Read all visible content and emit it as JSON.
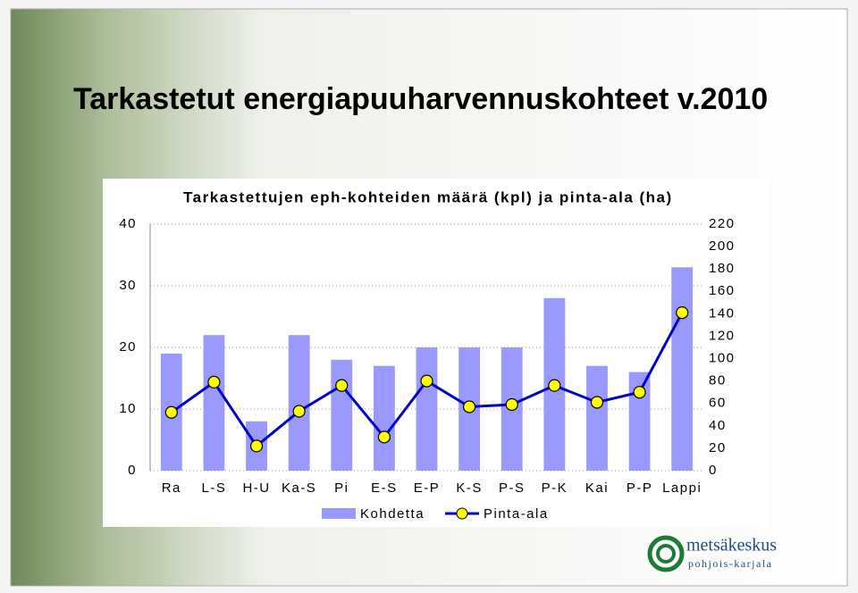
{
  "slide": {
    "title": "Tarkastetut energiapuuharvennuskohteet v.2010",
    "logo": {
      "name": "metsäkeskus",
      "region": "pohjois-karjala"
    }
  },
  "chart_data": {
    "type": "combo",
    "title": "Tarkastettujen eph-kohteiden määrä (kpl) ja pinta-ala (ha)",
    "categories": [
      "Ra",
      "L-S",
      "H-U",
      "Ka-S",
      "Pi",
      "E-S",
      "E-P",
      "K-S",
      "P-S",
      "P-K",
      "Kai",
      "P-P",
      "Lappi"
    ],
    "series": [
      {
        "name": "Kohdetta",
        "type": "bar",
        "color": "#9999ff",
        "values": [
          19,
          22,
          8,
          22,
          18,
          17,
          20,
          20,
          20,
          28,
          17,
          16,
          33
        ]
      },
      {
        "name": "Pinta-ala",
        "type": "line",
        "axis": "y2",
        "color": "#0000cc",
        "marker_color": "#ffff00",
        "values": [
          52,
          79,
          22,
          53,
          76,
          30,
          80,
          57,
          59,
          76,
          61,
          70,
          141
        ]
      }
    ],
    "ylim": [
      0,
      40
    ],
    "yticks": [
      0,
      10,
      20,
      30,
      40
    ],
    "y2lim": [
      0,
      220
    ],
    "y2ticks": [
      0,
      20,
      40,
      60,
      80,
      100,
      120,
      140,
      160,
      180,
      200,
      220
    ],
    "grid": true
  }
}
